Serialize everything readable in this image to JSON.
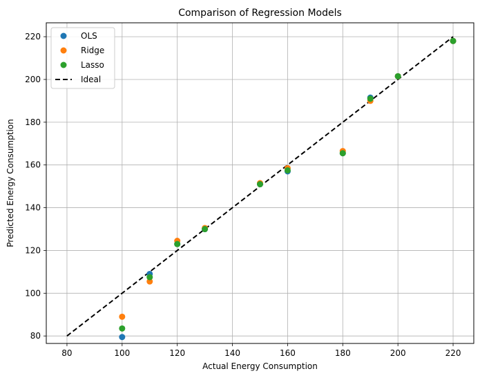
{
  "chart_data": {
    "type": "scatter",
    "title": "Comparison of Regression Models",
    "xlabel": "Actual Energy Consumption",
    "ylabel": "Predicted Energy Consumption",
    "xlim": [
      72.5,
      227.5
    ],
    "ylim": [
      76.5,
      226.5
    ],
    "xticks": [
      80,
      100,
      120,
      140,
      160,
      180,
      200,
      220
    ],
    "yticks": [
      80,
      100,
      120,
      140,
      160,
      180,
      200,
      220
    ],
    "grid": true,
    "legend_position": "upper-left",
    "x": [
      100,
      110,
      120,
      130,
      150,
      160,
      180,
      190,
      200,
      220
    ],
    "series": [
      {
        "name": "OLS",
        "color": "#1f77b4",
        "marker": "circle",
        "values": [
          79.5,
          109,
          123,
          130,
          151,
          157,
          165.5,
          191.5,
          201.5,
          218
        ]
      },
      {
        "name": "Ridge",
        "color": "#ff7f0e",
        "marker": "circle",
        "values": [
          89,
          105.5,
          124.5,
          130.5,
          151.5,
          158.5,
          166.5,
          190,
          201.5,
          218
        ]
      },
      {
        "name": "Lasso",
        "color": "#2ca02c",
        "marker": "circle",
        "values": [
          83.5,
          107.5,
          123,
          130,
          151,
          157.5,
          165.5,
          191,
          201.5,
          218
        ]
      }
    ],
    "reference_line": {
      "name": "Ideal",
      "color": "#000000",
      "style": "dashed",
      "from": [
        80,
        80
      ],
      "to": [
        220,
        220
      ]
    }
  }
}
